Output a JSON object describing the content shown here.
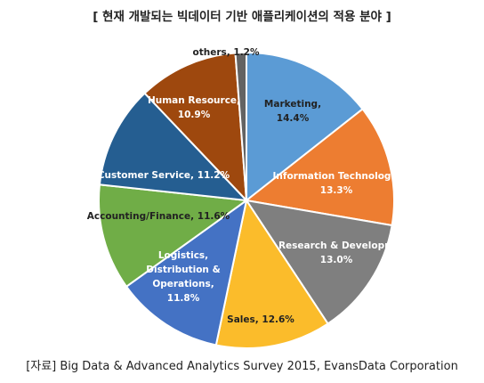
{
  "chart_data": {
    "type": "pie",
    "title": "[ 현재 개발되는 빅데이터 기반 애플리케이션의 적용 분야 ]",
    "source": "[자료] Big Data & Advanced Analytics Survey 2015, EvansData Corporation",
    "slices": [
      {
        "label": "Marketing,",
        "value": 14.4,
        "value_text": "14.4%",
        "color": "#5b9bd5",
        "text_color": "#222222",
        "lines": [
          "Marketing,",
          "14.4%"
        ]
      },
      {
        "label": "Information Technology,",
        "value": 13.3,
        "value_text": "13.3%",
        "color": "#ed7d31",
        "text_color": "#ffffff",
        "lines": [
          "Information Technology,",
          "13.3%"
        ]
      },
      {
        "label": "Research & Developm",
        "value": 13.0,
        "value_text": "13.0%",
        "color": "#7f7f7f",
        "text_color": "#ffffff",
        "lines": [
          "Research & Developm",
          "13.0%"
        ]
      },
      {
        "label": "Sales,",
        "value": 12.6,
        "value_text": "12.6%",
        "color": "#fbbc2b",
        "text_color": "#222222",
        "lines": [
          "Sales, 12.6%"
        ]
      },
      {
        "label": "Logistics, Distribution & Operations,",
        "value": 11.8,
        "value_text": "11.8%",
        "color": "#4472c4",
        "text_color": "#ffffff",
        "lines": [
          "Logistics,",
          "Distribution &",
          "Operations,",
          "11.8%"
        ]
      },
      {
        "label": "Accounting/Finance,",
        "value": 11.6,
        "value_text": "11.6%",
        "color": "#70ad47",
        "text_color": "#222222",
        "lines": [
          "Accounting/Finance, 11.6%"
        ]
      },
      {
        "label": "Customer Service,",
        "value": 11.2,
        "value_text": "11.2%",
        "color": "#255e91",
        "text_color": "#ffffff",
        "lines": [
          "Customer Service, 11.2%"
        ]
      },
      {
        "label": "Human Resource,",
        "value": 10.9,
        "value_text": "10.9%",
        "color": "#9e480e",
        "text_color": "#ffffff",
        "lines": [
          "Human Resource,",
          "10.9%"
        ]
      },
      {
        "label": "others,",
        "value": 1.2,
        "value_text": "1.2%",
        "color": "#636363",
        "text_color": "#222222",
        "lines": [
          "others, 1.2%"
        ]
      }
    ]
  }
}
